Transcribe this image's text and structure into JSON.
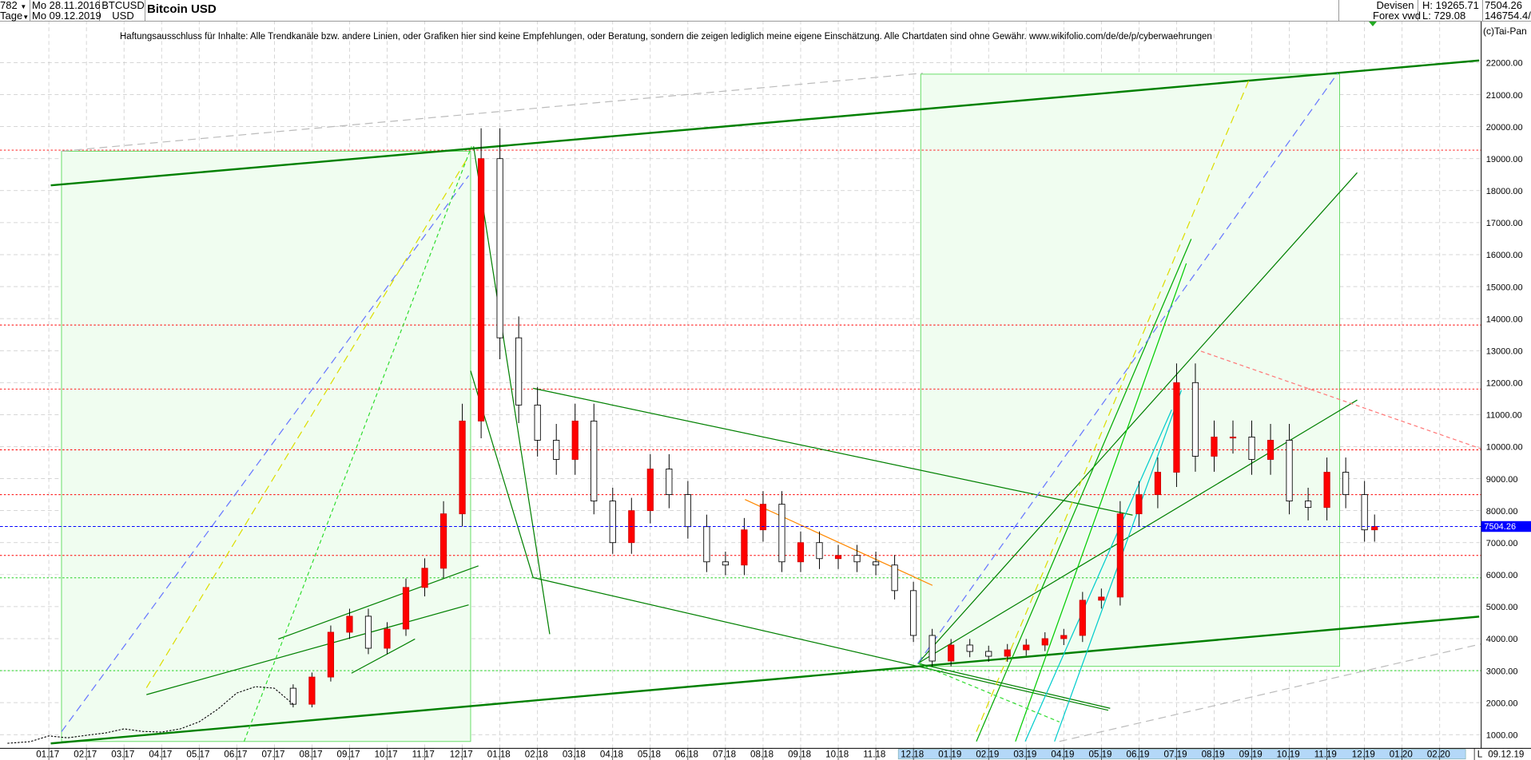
{
  "header": {
    "count": "782",
    "period": "Tage",
    "date_from": "Mo 28.11.2016",
    "date_to": "Mo 09.12.2019",
    "symbol": "BTCUSD",
    "currency": "USD",
    "title": "Bitcoin USD",
    "market": "Devisen",
    "source": "Forex vwd",
    "high": "H: 19265.71",
    "low": "L: 729.08",
    "last": "7504.26",
    "volume": "146754.4/"
  },
  "disclaimer": "Haftungsausschluss für Inhalte: Alle Trendkanäle bzw. andere Linien, oder Grafiken hier sind keine Empfehlungen, oder Beratung, sondern die zeigen lediglich meine eigene Einschätzung. Alle Chartdaten sind ohne Gewähr.  www.wikifolio.com/de/de/p/cyberwaehrungen",
  "copyright": "(c)Tai-Pan",
  "footer": {
    "scale_mode": "L",
    "last_date": "09.12.19"
  },
  "colors": {
    "up": "#ff0000",
    "down": "#000000",
    "trend": "#008000",
    "fib": "#44cc44",
    "price_line": "#0000ff",
    "background_zone": "#f0fdf0",
    "range_highlight": "#b4d8f8"
  },
  "chart_data": {
    "type": "candlestick",
    "title": "Bitcoin USD",
    "ylim": [
      700,
      22600
    ],
    "y_ticks": [
      "1000.00",
      "2000.00",
      "3000.00",
      "4000.00",
      "5000.00",
      "6000.00",
      "7000.00",
      "8000.00",
      "9000.00",
      "10000.00",
      "11000.00",
      "12000.00",
      "13000.00",
      "14000.00",
      "15000.00",
      "16000.00",
      "17000.00",
      "18000.00",
      "19000.00",
      "20000.00",
      "21000.00",
      "22000.00"
    ],
    "x_ticks": [
      "01.17",
      "02.17",
      "03.17",
      "04.17",
      "05.17",
      "06.17",
      "07.17",
      "08.17",
      "09.17",
      "10.17",
      "11.17",
      "12.17",
      "01.18",
      "02.18",
      "03.18",
      "04.18",
      "05.18",
      "06.18",
      "07.18",
      "08.18",
      "09.18",
      "10.18",
      "11.18",
      "12.18",
      "01.19",
      "02.19",
      "03.19",
      "04.19",
      "05.19",
      "06.19",
      "07.19",
      "08.19",
      "09.19",
      "10.19",
      "11.19",
      "12.19",
      "01.20",
      "02.20"
    ],
    "last_price": 7504.26,
    "last_price_label": "7504.26",
    "dates": [
      "2016-11-28",
      "2016-12-16",
      "2017-01-01",
      "2017-01-16",
      "2017-02-01",
      "2017-02-16",
      "2017-03-01",
      "2017-03-16",
      "2017-04-01",
      "2017-04-16",
      "2017-05-01",
      "2017-05-16",
      "2017-06-01",
      "2017-06-16",
      "2017-07-01",
      "2017-07-16",
      "2017-08-01",
      "2017-08-16",
      "2017-09-01",
      "2017-09-16",
      "2017-10-01",
      "2017-10-16",
      "2017-11-01",
      "2017-11-16",
      "2017-12-01",
      "2017-12-16",
      "2018-01-01",
      "2018-01-16",
      "2018-02-01",
      "2018-02-16",
      "2018-03-01",
      "2018-03-16",
      "2018-04-01",
      "2018-04-16",
      "2018-05-01",
      "2018-05-16",
      "2018-06-01",
      "2018-06-16",
      "2018-07-01",
      "2018-07-16",
      "2018-08-01",
      "2018-08-16",
      "2018-09-01",
      "2018-09-16",
      "2018-10-01",
      "2018-10-16",
      "2018-11-01",
      "2018-11-16",
      "2018-12-01",
      "2018-12-16",
      "2019-01-01",
      "2019-01-16",
      "2019-02-01",
      "2019-02-16",
      "2019-03-01",
      "2019-03-16",
      "2019-04-01",
      "2019-04-16",
      "2019-05-01",
      "2019-05-16",
      "2019-06-01",
      "2019-06-16",
      "2019-07-01",
      "2019-07-16",
      "2019-08-01",
      "2019-08-16",
      "2019-09-01",
      "2019-09-16",
      "2019-10-01",
      "2019-10-16",
      "2019-11-01",
      "2019-11-16",
      "2019-12-01",
      "2019-12-09"
    ],
    "close": [
      730,
      780,
      960,
      900,
      980,
      1050,
      1180,
      1100,
      1080,
      1180,
      1400,
      1800,
      2300,
      2500,
      2450,
      1950,
      2800,
      4200,
      4700,
      3700,
      4300,
      5600,
      6200,
      7900,
      10800,
      19000,
      13400,
      11300,
      10200,
      9600,
      10800,
      8300,
      7000,
      8000,
      9300,
      8500,
      7500,
      6400,
      6300,
      7400,
      8200,
      6400,
      7000,
      6500,
      6600,
      6400,
      6300,
      5500,
      4100,
      3300,
      3800,
      3600,
      3450,
      3650,
      3800,
      4000,
      4100,
      5200,
      5300,
      7900,
      8500,
      9200,
      12000,
      9700,
      10300,
      10300,
      9600,
      10200,
      8300,
      8100,
      9200,
      8500,
      7400,
      7504.26
    ],
    "horizontal_levels": [
      {
        "price": 19265.71,
        "color": "#ff0000"
      },
      {
        "price": 13800,
        "color": "#ff0000"
      },
      {
        "price": 11800,
        "color": "#ff0000"
      },
      {
        "price": 9900,
        "color": "#ff0000"
      },
      {
        "price": 8500,
        "color": "#ff0000"
      },
      {
        "price": 6600,
        "color": "#ff0000"
      },
      {
        "price": 5900,
        "color": "#00cc00"
      },
      {
        "price": 3000,
        "color": "#00cc00"
      }
    ]
  }
}
